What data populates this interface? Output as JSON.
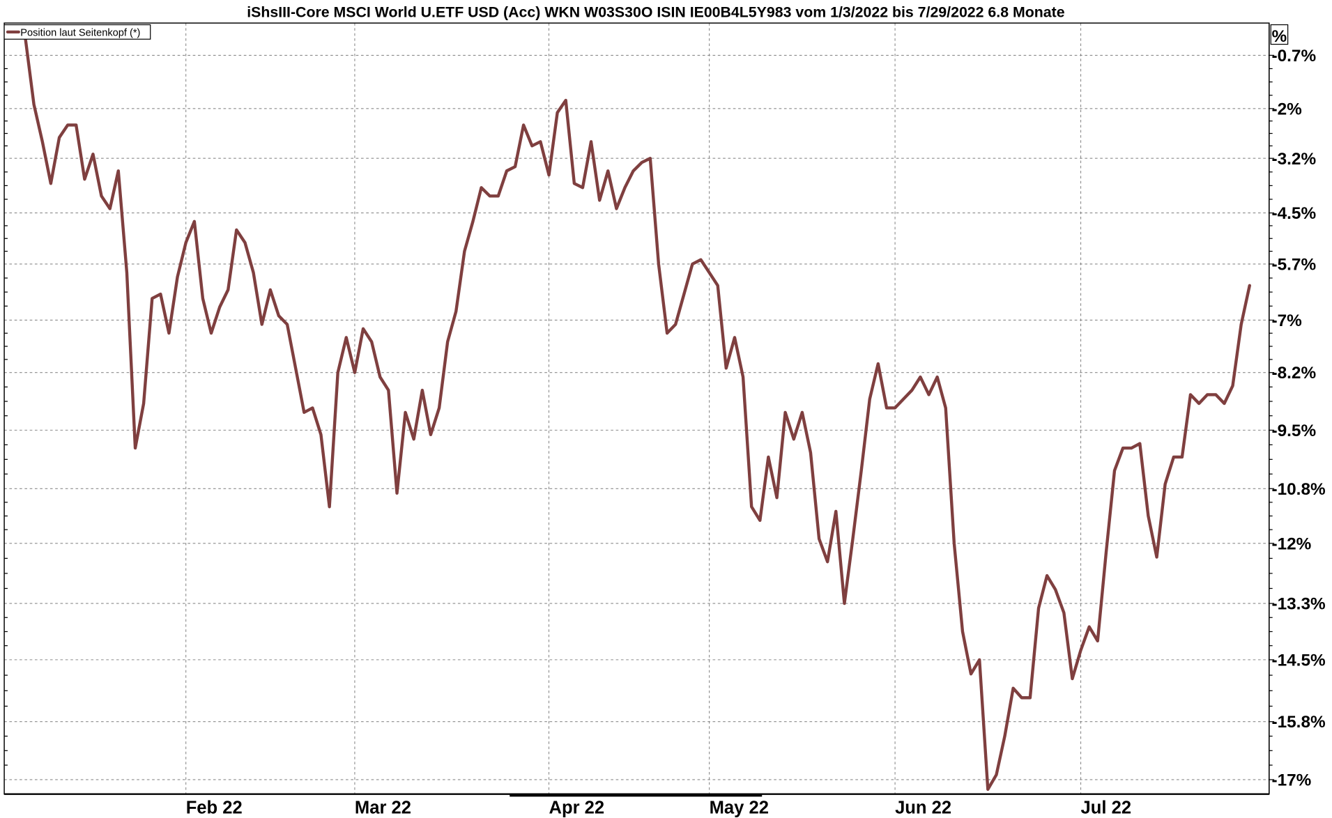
{
  "chart_data": {
    "type": "line",
    "title": "iShsIII-Core MSCI World U.ETF USD (Acc) WKN W03S30O ISIN IE00B4L5Y983 vom 1/3/2022 bis 7/29/2022 6.8 Monate",
    "ylabel": "%",
    "y_scale": "log",
    "ylim": [
      -17.2,
      -0.3
    ],
    "grid": true,
    "legend_position": "top-left",
    "line_color": "#7f3f3f",
    "y_ticks": [
      "-0.7%",
      "-2%",
      "-3.2%",
      "-4.5%",
      "-5.7%",
      "-7%",
      "-8.2%",
      "-9.5%",
      "-10.8%",
      "-12%",
      "-13.3%",
      "-14.5%",
      "-15.8%",
      "-17%"
    ],
    "y_tick_values": [
      -0.7,
      -2,
      -3.2,
      -4.5,
      -5.7,
      -7,
      -8.2,
      -9.5,
      -10.8,
      -12,
      -13.3,
      -14.5,
      -15.8,
      -17
    ],
    "x_ticks": [
      {
        "label": "Feb 22",
        "date": "2022-02-01"
      },
      {
        "label": "Mar 22",
        "date": "2022-03-01"
      },
      {
        "label": "Apr 22",
        "date": "2022-04-01"
      },
      {
        "label": "May 22",
        "date": "2022-05-02"
      },
      {
        "label": "Jun 22",
        "date": "2022-06-01"
      },
      {
        "label": "Jul 22",
        "date": "2022-07-01"
      }
    ],
    "series": [
      {
        "name": "Position laut Seitenkopf (*)",
        "x": [
          "2022-01-03",
          "2022-01-04",
          "2022-01-06",
          "2022-01-07",
          "2022-01-10",
          "2022-01-11",
          "2022-01-12",
          "2022-01-13",
          "2022-01-14",
          "2022-01-17",
          "2022-01-18",
          "2022-01-19",
          "2022-01-20",
          "2022-01-21",
          "2022-01-24",
          "2022-01-26",
          "2022-01-27",
          "2022-01-28",
          "2022-01-31",
          "2022-02-01",
          "2022-02-02",
          "2022-02-03",
          "2022-02-04",
          "2022-02-07",
          "2022-02-08",
          "2022-02-09",
          "2022-02-10",
          "2022-02-11",
          "2022-02-14",
          "2022-02-15",
          "2022-02-16",
          "2022-02-17",
          "2022-02-18",
          "2022-02-21",
          "2022-02-22",
          "2022-02-23",
          "2022-02-24",
          "2022-02-25",
          "2022-02-28",
          "2022-03-01",
          "2022-03-02",
          "2022-03-03",
          "2022-03-04",
          "2022-03-07",
          "2022-03-08",
          "2022-03-09",
          "2022-03-10",
          "2022-03-11",
          "2022-03-14",
          "2022-03-15",
          "2022-03-16",
          "2022-03-17",
          "2022-03-18",
          "2022-03-21",
          "2022-03-22",
          "2022-03-23",
          "2022-03-24",
          "2022-03-25",
          "2022-03-28",
          "2022-03-29",
          "2022-03-30",
          "2022-03-31",
          "2022-04-01",
          "2022-04-04",
          "2022-04-05",
          "2022-04-06",
          "2022-04-07",
          "2022-04-08",
          "2022-04-11",
          "2022-04-12",
          "2022-04-13",
          "2022-04-14",
          "2022-04-19",
          "2022-04-20",
          "2022-04-21",
          "2022-04-22",
          "2022-04-25",
          "2022-04-26",
          "2022-04-27",
          "2022-04-28",
          "2022-04-29",
          "2022-05-02",
          "2022-05-03",
          "2022-05-04",
          "2022-05-05",
          "2022-05-06",
          "2022-05-09",
          "2022-05-10",
          "2022-05-11",
          "2022-05-12",
          "2022-05-13",
          "2022-05-16",
          "2022-05-17",
          "2022-05-18",
          "2022-05-19",
          "2022-05-20",
          "2022-05-23",
          "2022-05-24",
          "2022-05-25",
          "2022-05-26",
          "2022-05-27",
          "2022-05-30",
          "2022-05-31",
          "2022-06-01",
          "2022-06-02",
          "2022-06-03",
          "2022-06-06",
          "2022-06-07",
          "2022-06-08",
          "2022-06-09",
          "2022-06-10",
          "2022-06-13",
          "2022-06-14",
          "2022-06-15",
          "2022-06-16",
          "2022-06-17",
          "2022-06-20",
          "2022-06-21",
          "2022-06-22",
          "2022-06-23",
          "2022-06-24",
          "2022-06-27",
          "2022-06-28",
          "2022-06-29",
          "2022-06-30",
          "2022-07-01",
          "2022-07-04",
          "2022-07-05",
          "2022-07-06",
          "2022-07-07",
          "2022-07-08",
          "2022-07-11",
          "2022-07-12",
          "2022-07-13",
          "2022-07-14",
          "2022-07-15",
          "2022-07-18",
          "2022-07-19",
          "2022-07-20",
          "2022-07-21",
          "2022-07-22",
          "2022-07-25",
          "2022-07-26",
          "2022-07-27",
          "2022-07-28",
          "2022-07-29"
        ],
        "values": [
          -0.3,
          -1.9,
          -2.8,
          -3.8,
          -2.7,
          -2.4,
          -2.4,
          -3.7,
          -3.1,
          -4.1,
          -4.4,
          -3.5,
          -5.9,
          -9.9,
          -8.9,
          -6.5,
          -6.4,
          -7.3,
          -6.0,
          -5.2,
          -4.7,
          -6.5,
          -7.3,
          -6.7,
          -6.3,
          -4.9,
          -5.2,
          -5.9,
          -7.1,
          -6.3,
          -6.9,
          -7.1,
          -8.1,
          -9.1,
          -9.0,
          -9.6,
          -11.2,
          -8.2,
          -7.4,
          -8.2,
          -7.2,
          -7.5,
          -8.3,
          -8.6,
          -10.9,
          -9.1,
          -9.7,
          -8.6,
          -9.6,
          -9.0,
          -7.5,
          -6.8,
          -5.4,
          -4.7,
          -3.9,
          -4.1,
          -4.1,
          -3.5,
          -3.4,
          -2.4,
          -2.9,
          -2.8,
          -3.6,
          -2.1,
          -1.8,
          -3.8,
          -3.9,
          -2.8,
          -4.2,
          -3.5,
          -4.4,
          -3.9,
          -3.5,
          -3.3,
          -3.2,
          -5.7,
          -7.3,
          -7.1,
          -6.4,
          -5.7,
          -5.6,
          -5.9,
          -6.2,
          -8.1,
          -7.4,
          -8.3,
          -11.2,
          -11.5,
          -10.1,
          -11.0,
          -9.1,
          -9.7,
          -9.1,
          -10.0,
          -11.9,
          -12.4,
          -11.3,
          -13.3,
          -11.9,
          -10.4,
          -8.8,
          -8.0,
          -9.0,
          -9.0,
          -8.8,
          -8.6,
          -8.3,
          -8.7,
          -8.3,
          -9.0,
          -12.0,
          -13.9,
          -14.8,
          -14.5,
          -17.2,
          -16.9,
          -16.1,
          -15.1,
          -15.3,
          -15.3,
          -13.4,
          -12.7,
          -13.0,
          -13.5,
          -14.9,
          -14.3,
          -13.8,
          -14.1,
          -12.2,
          -10.4,
          -9.9,
          -9.9,
          -9.8,
          -11.4,
          -12.3,
          -10.7,
          -10.1,
          -10.1,
          -8.7,
          -8.9,
          -8.7,
          -8.7,
          -8.9,
          -8.5,
          -7.1,
          -6.2
        ]
      }
    ]
  }
}
